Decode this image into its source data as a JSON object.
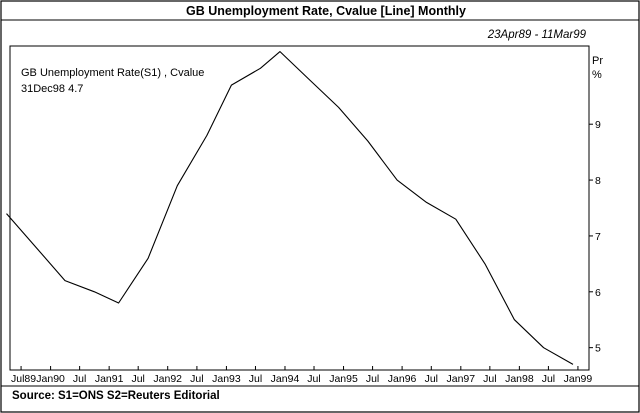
{
  "chart_data": {
    "type": "line",
    "title": "GB Unemployment Rate, Cvalue [Line] Monthly",
    "date_range": "23Apr89 - 11Mar99",
    "legend": {
      "series_label": "GB Unemployment Rate(S1) , Cvalue",
      "last_value": "31Dec98 4.7"
    },
    "y_unit_label": [
      "Pr",
      "%"
    ],
    "source": "Source: S1=ONS S2=Reuters Editorial",
    "x_tick_labels": [
      "Jul89",
      "Jan90",
      "Jul",
      "Jan91",
      "Jul",
      "Jan92",
      "Jul",
      "Jan93",
      "Jul",
      "Jan94",
      "Jul",
      "Jan95",
      "Jul",
      "Jan96",
      "Jul",
      "Jan97",
      "Jul",
      "Jan98",
      "Jul",
      "Jan99"
    ],
    "x_tick_dates": [
      "1989-07",
      "1990-01",
      "1990-07",
      "1991-01",
      "1991-07",
      "1992-01",
      "1992-07",
      "1993-01",
      "1993-07",
      "1994-01",
      "1994-07",
      "1995-01",
      "1995-07",
      "1996-01",
      "1996-07",
      "1997-01",
      "1997-07",
      "1998-01",
      "1998-07",
      "1999-01"
    ],
    "y_ticks": [
      5,
      6,
      7,
      8,
      9
    ],
    "ylim": [
      4.6,
      10.4
    ],
    "xlim": [
      "1989-04-23",
      "1999-03-11"
    ],
    "grid": false,
    "series": [
      {
        "x": [
          "1989-04",
          "1989-10",
          "1990-04",
          "1990-10",
          "1991-03",
          "1991-09",
          "1992-03",
          "1992-09",
          "1993-02",
          "1993-08",
          "1993-12",
          "1994-06",
          "1994-12",
          "1995-06",
          "1995-12",
          "1996-06",
          "1996-12",
          "1997-06",
          "1997-12",
          "1998-06",
          "1998-12"
        ],
        "y": [
          7.4,
          6.8,
          6.2,
          6.0,
          5.8,
          6.6,
          7.9,
          8.8,
          9.7,
          10.0,
          10.3,
          9.8,
          9.3,
          8.7,
          8.0,
          7.6,
          7.3,
          6.5,
          5.5,
          5.0,
          4.7
        ]
      }
    ]
  }
}
